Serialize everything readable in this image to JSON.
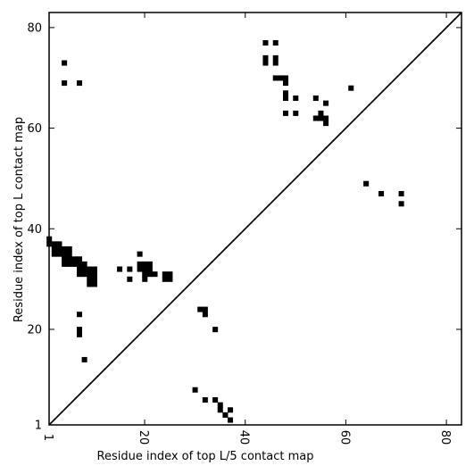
{
  "chart_data": {
    "type": "heatmap",
    "title": "",
    "xlabel": "Residue index of top L/5 contact map",
    "ylabel": "Residue index of top L contact map",
    "xlim": [
      1,
      83
    ],
    "ylim": [
      1,
      83
    ],
    "xticks": [
      1,
      20,
      40,
      60,
      80
    ],
    "yticks": [
      1,
      20,
      40,
      60,
      80
    ],
    "xtick_labels": [
      "1",
      "20",
      "40",
      "60",
      "80"
    ],
    "ytick_labels": [
      "1",
      "20",
      "40",
      "60",
      "80"
    ],
    "grid": false,
    "diagonal": true,
    "contact_color": "#000000",
    "upper_contacts": [
      [
        4,
        73
      ],
      [
        4,
        69
      ],
      [
        7,
        69
      ],
      [
        44,
        77
      ],
      [
        46,
        77
      ],
      [
        44,
        74
      ],
      [
        44,
        73
      ],
      [
        46,
        74
      ],
      [
        46,
        73
      ],
      [
        46,
        70
      ],
      [
        47,
        70
      ],
      [
        48,
        70
      ],
      [
        48,
        69
      ],
      [
        48,
        67
      ],
      [
        48,
        66
      ],
      [
        50,
        66
      ],
      [
        48,
        63
      ],
      [
        50,
        63
      ],
      [
        54,
        66
      ],
      [
        56,
        65
      ],
      [
        61,
        68
      ],
      [
        55,
        63
      ],
      [
        54,
        62
      ],
      [
        55,
        62
      ],
      [
        56,
        62
      ],
      [
        56,
        61
      ],
      [
        64,
        49
      ],
      [
        67,
        47
      ],
      [
        71,
        47
      ],
      [
        71,
        45
      ]
    ],
    "lower_contacts": [
      [
        1,
        38
      ],
      [
        1,
        37
      ],
      [
        2,
        37
      ],
      [
        3,
        37
      ],
      [
        2,
        36
      ],
      [
        3,
        36
      ],
      [
        4,
        36
      ],
      [
        5,
        36
      ],
      [
        2,
        35
      ],
      [
        3,
        35
      ],
      [
        4,
        35
      ],
      [
        5,
        35
      ],
      [
        4,
        34
      ],
      [
        5,
        34
      ],
      [
        6,
        34
      ],
      [
        7,
        34
      ],
      [
        4,
        33
      ],
      [
        5,
        33
      ],
      [
        6,
        33
      ],
      [
        7,
        33
      ],
      [
        8,
        33
      ],
      [
        7,
        32
      ],
      [
        8,
        32
      ],
      [
        9,
        32
      ],
      [
        10,
        32
      ],
      [
        7,
        31
      ],
      [
        8,
        31
      ],
      [
        9,
        31
      ],
      [
        10,
        31
      ],
      [
        9,
        30
      ],
      [
        10,
        30
      ],
      [
        9,
        29
      ],
      [
        10,
        29
      ],
      [
        15,
        32
      ],
      [
        17,
        32
      ],
      [
        17,
        30
      ],
      [
        19,
        35
      ],
      [
        19,
        33
      ],
      [
        20,
        33
      ],
      [
        21,
        33
      ],
      [
        19,
        32
      ],
      [
        20,
        32
      ],
      [
        21,
        32
      ],
      [
        20,
        31
      ],
      [
        21,
        31
      ],
      [
        22,
        31
      ],
      [
        20,
        30
      ],
      [
        24,
        31
      ],
      [
        25,
        31
      ],
      [
        24,
        30
      ],
      [
        25,
        30
      ],
      [
        7,
        23
      ],
      [
        7,
        20
      ],
      [
        7,
        19
      ],
      [
        8,
        14
      ],
      [
        31,
        24
      ],
      [
        32,
        24
      ],
      [
        32,
        23
      ],
      [
        34,
        20
      ],
      [
        30,
        8
      ],
      [
        32,
        6
      ],
      [
        34,
        6
      ],
      [
        35,
        5
      ],
      [
        35,
        4
      ],
      [
        36,
        3
      ],
      [
        37,
        4
      ],
      [
        37,
        2
      ]
    ]
  }
}
